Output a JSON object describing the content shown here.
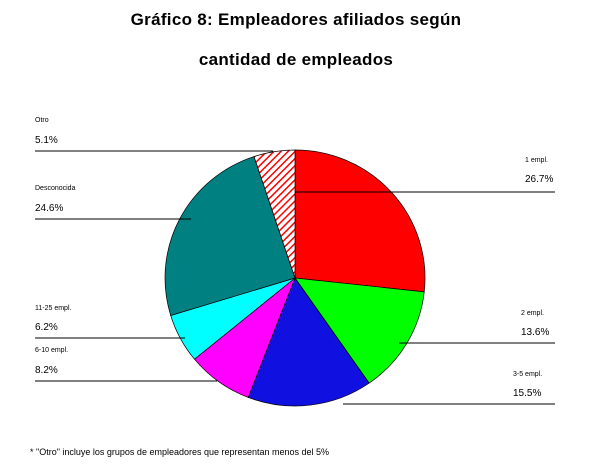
{
  "titles": {
    "line1": "Gráfico 8: Empleadores afiliados según",
    "line2": "cantidad de empleados"
  },
  "footnote": "* \"Otro\" incluye los grupos de empleadores que representan menos del 5%",
  "chart_data": {
    "type": "pie",
    "title": "Gráfico 8: Empleadores afiliados según cantidad de empleados",
    "slices": [
      {
        "label": "1 empl.",
        "value_text": "26.7%",
        "value": 26.7,
        "color": "#ff0000"
      },
      {
        "label": "2 empl.",
        "value_text": "13.6%",
        "value": 13.6,
        "color": "#00ff00"
      },
      {
        "label": "3-5 empl.",
        "value_text": "15.5%",
        "value": 15.5,
        "color": "#1010e0"
      },
      {
        "label": "6-10 empl.",
        "value_text": "8.2%",
        "value": 8.2,
        "color": "#ff00ff"
      },
      {
        "label": "11-25 empl.",
        "value_text": "6.2%",
        "value": 6.2,
        "color": "#00ffff"
      },
      {
        "label": "Desconocida",
        "value_text": "24.6%",
        "value": 24.6,
        "color": "#008080"
      },
      {
        "label": "Otro",
        "value_text": "5.1%",
        "value": 5.1,
        "color": "#ff0000",
        "hatched": true
      }
    ]
  }
}
